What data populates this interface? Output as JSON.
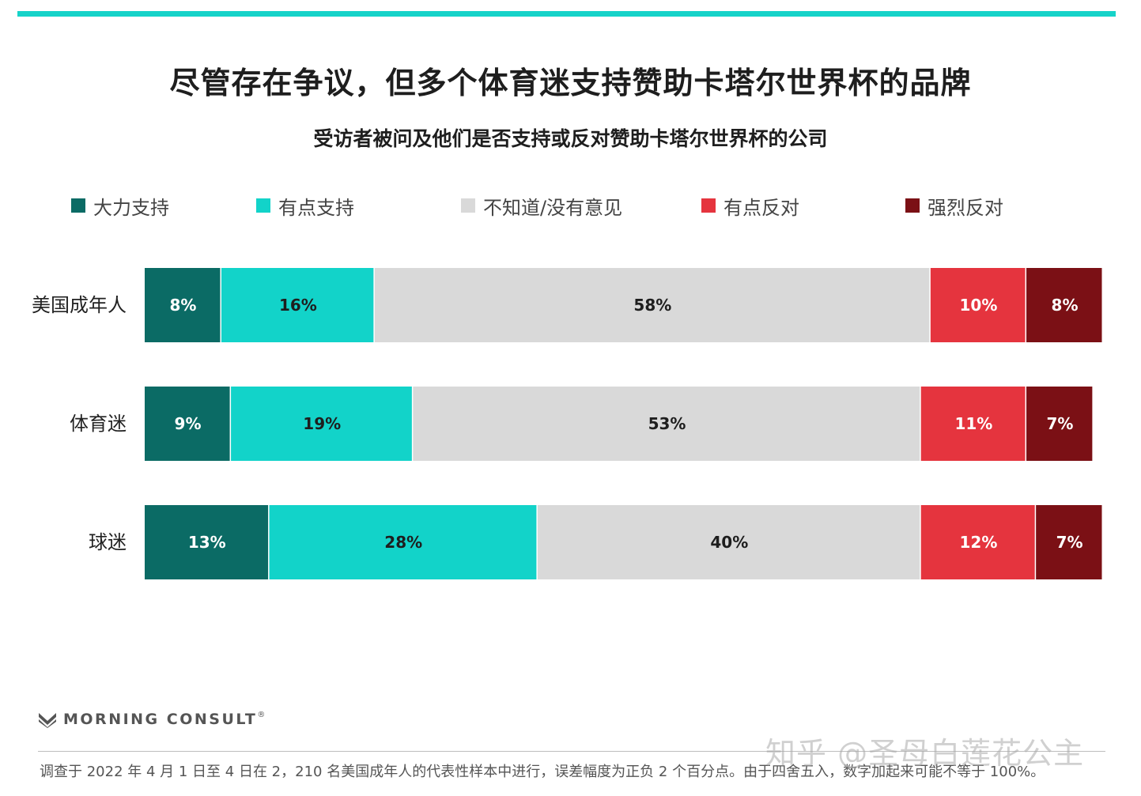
{
  "header": {
    "title": "尽管存在争议，但多个体育迷支持赞助卡塔尔世界杯的品牌",
    "subtitle": "受访者被问及他们是否支持或反对赞助卡塔尔世界杯的公司"
  },
  "colors": {
    "accent_bar": "#16d3c9",
    "strong_support": "#0b6b65",
    "some_support": "#12d3c9",
    "no_opinion": "#d9d9d9",
    "some_oppose": "#e5343e",
    "strong_oppose": "#7b1015"
  },
  "chart_data": {
    "type": "bar",
    "orientation": "horizontal",
    "stacked": true,
    "title": "尽管存在争议，但多个体育迷支持赞助卡塔尔世界杯的品牌",
    "subtitle": "受访者被问及他们是否支持或反对赞助卡塔尔世界杯的公司",
    "legend_position": "top",
    "categories": [
      "美国成年人",
      "体育迷",
      "球迷"
    ],
    "series": [
      {
        "name": "大力支持",
        "color": "#0b6b65",
        "values": [
          8,
          9,
          13
        ],
        "labels": [
          "8%",
          "9%",
          "13%"
        ]
      },
      {
        "name": "有点支持",
        "color": "#12d3c9",
        "values": [
          16,
          19,
          28
        ],
        "labels": [
          "16%",
          "19%",
          "28%"
        ]
      },
      {
        "name": "不知道/没有意见",
        "color": "#d9d9d9",
        "values": [
          58,
          53,
          40
        ],
        "labels": [
          "58%",
          "53%",
          "40%"
        ]
      },
      {
        "name": "有点反对",
        "color": "#e5343e",
        "values": [
          10,
          11,
          12
        ],
        "labels": [
          "10%",
          "11%",
          "12%"
        ]
      },
      {
        "name": "强烈反对",
        "color": "#7b1015",
        "values": [
          8,
          7,
          7
        ],
        "labels": [
          "8%",
          "7%",
          "7%"
        ]
      }
    ],
    "xlim": [
      0,
      100
    ],
    "grid": false
  },
  "footer": {
    "brand": "MORNING CONSULT",
    "brand_mark": "®",
    "note": "调查于 2022 年 4 月 1 日至 4 日在 2，210 名美国成年人的代表性样本中进行，误差幅度为正负 2 个百分点。由于四舍五入，数字加起来可能不等于 100%。",
    "watermark": "知乎 @圣母白莲花公主"
  }
}
